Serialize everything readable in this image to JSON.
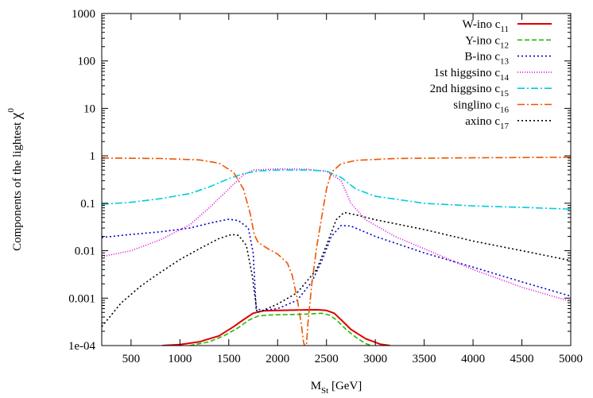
{
  "chart_data": {
    "type": "line",
    "title": "",
    "xlabel": "M",
    "xlabel_sub": "St",
    "xlabel_unit": "[GeV]",
    "ylabel": "Components of the lightest",
    "ylabel_symbol": "χ",
    "ylabel_sup": "0",
    "xlim": [
      200,
      5000
    ],
    "ylim": [
      0.0001,
      1000
    ],
    "yscale": "log",
    "grid": false,
    "legend_position": "top-right",
    "x_ticks": [
      500,
      1000,
      1500,
      2000,
      2500,
      3000,
      3500,
      4000,
      4500,
      5000
    ],
    "x_tick_labels": [
      "500",
      "1000",
      "1500",
      "2000",
      "2500",
      "3000",
      "3500",
      "4000",
      "4500",
      "5000"
    ],
    "y_ticks": [
      0.0001,
      0.001,
      0.01,
      0.1,
      1,
      10,
      100,
      1000
    ],
    "y_tick_labels": [
      "1e-04",
      "0.001",
      "0.01",
      "0.1",
      "1",
      "10",
      "100",
      "1000"
    ],
    "series": [
      {
        "name": "W-ino",
        "coeff": "c",
        "sub": "11",
        "color": "#e00000",
        "dash": "",
        "points": [
          [
            820,
            0.0001
          ],
          [
            1000,
            0.000105
          ],
          [
            1200,
            0.00012
          ],
          [
            1400,
            0.00016
          ],
          [
            1550,
            0.00025
          ],
          [
            1650,
            0.00035
          ],
          [
            1750,
            0.00048
          ],
          [
            1850,
            0.00054
          ],
          [
            2000,
            0.00055
          ],
          [
            2200,
            0.00056
          ],
          [
            2400,
            0.00057
          ],
          [
            2500,
            0.00055
          ],
          [
            2580,
            0.00048
          ],
          [
            2650,
            0.00035
          ],
          [
            2750,
            0.00022
          ],
          [
            2900,
            0.00014
          ],
          [
            3050,
            0.000107
          ],
          [
            3150,
            0.0001
          ]
        ]
      },
      {
        "name": "Y-ino",
        "coeff": "c",
        "sub": "12",
        "color": "#22bb00",
        "dash": "6,3",
        "points": [
          [
            1100,
            0.0001
          ],
          [
            1300,
            0.00012
          ],
          [
            1450,
            0.00016
          ],
          [
            1600,
            0.00024
          ],
          [
            1700,
            0.00034
          ],
          [
            1800,
            0.00042
          ],
          [
            1900,
            0.00044
          ],
          [
            2100,
            0.00045
          ],
          [
            2300,
            0.00046
          ],
          [
            2450,
            0.00048
          ],
          [
            2530,
            0.00044
          ],
          [
            2600,
            0.00035
          ],
          [
            2700,
            0.00022
          ],
          [
            2800,
            0.00015
          ],
          [
            2900,
            0.00011
          ],
          [
            2960,
            0.0001
          ]
        ]
      },
      {
        "name": "B-ino",
        "coeff": "c",
        "sub": "13",
        "color": "#0000cc",
        "dash": "2,3",
        "points": [
          [
            200,
            0.019
          ],
          [
            500,
            0.022
          ],
          [
            800,
            0.025
          ],
          [
            1100,
            0.03
          ],
          [
            1350,
            0.04
          ],
          [
            1500,
            0.046
          ],
          [
            1600,
            0.043
          ],
          [
            1700,
            0.03
          ],
          [
            1750,
            0.009
          ],
          [
            1780,
            0.0006
          ],
          [
            1850,
            0.00055
          ],
          [
            2000,
            0.0006
          ],
          [
            2200,
            0.0009
          ],
          [
            2350,
            0.0022
          ],
          [
            2450,
            0.006
          ],
          [
            2550,
            0.02
          ],
          [
            2650,
            0.034
          ],
          [
            2750,
            0.033
          ],
          [
            3000,
            0.02
          ],
          [
            3500,
            0.009
          ],
          [
            4000,
            0.0045
          ],
          [
            4500,
            0.0022
          ],
          [
            5000,
            0.0011
          ]
        ]
      },
      {
        "name": "1st higgsino",
        "coeff": "c",
        "sub": "14",
        "color": "#dd00dd",
        "dash": "1,2",
        "points": [
          [
            200,
            0.0075
          ],
          [
            500,
            0.01
          ],
          [
            800,
            0.017
          ],
          [
            1100,
            0.035
          ],
          [
            1300,
            0.08
          ],
          [
            1500,
            0.2
          ],
          [
            1650,
            0.4
          ],
          [
            1750,
            0.5
          ],
          [
            2000,
            0.53
          ],
          [
            2300,
            0.52
          ],
          [
            2500,
            0.47
          ],
          [
            2650,
            0.3
          ],
          [
            2750,
            0.1
          ],
          [
            2900,
            0.045
          ],
          [
            3200,
            0.02
          ],
          [
            3500,
            0.011
          ],
          [
            4000,
            0.004
          ],
          [
            4500,
            0.0017
          ],
          [
            5000,
            0.00085
          ]
        ]
      },
      {
        "name": "2nd higgsino",
        "coeff": "c",
        "sub": "15",
        "color": "#00ccdd",
        "dash": "9,3,2,3",
        "points": [
          [
            200,
            0.095
          ],
          [
            500,
            0.105
          ],
          [
            800,
            0.125
          ],
          [
            1100,
            0.16
          ],
          [
            1300,
            0.22
          ],
          [
            1500,
            0.33
          ],
          [
            1650,
            0.42
          ],
          [
            1800,
            0.48
          ],
          [
            2000,
            0.5
          ],
          [
            2300,
            0.5
          ],
          [
            2500,
            0.48
          ],
          [
            2650,
            0.35
          ],
          [
            2800,
            0.2
          ],
          [
            3000,
            0.14
          ],
          [
            3500,
            0.1
          ],
          [
            4000,
            0.088
          ],
          [
            4500,
            0.082
          ],
          [
            5000,
            0.075
          ]
        ]
      },
      {
        "name": "singlino",
        "coeff": "c",
        "sub": "16",
        "color": "#ee5500",
        "dash": "9,3,2,3",
        "points": [
          [
            200,
            0.9
          ],
          [
            800,
            0.88
          ],
          [
            1200,
            0.82
          ],
          [
            1400,
            0.7
          ],
          [
            1550,
            0.45
          ],
          [
            1650,
            0.2
          ],
          [
            1720,
            0.06
          ],
          [
            1760,
            0.022
          ],
          [
            1800,
            0.015
          ],
          [
            1900,
            0.011
          ],
          [
            2000,
            0.0085
          ],
          [
            2100,
            0.0055
          ],
          [
            2150,
            0.003
          ],
          [
            2200,
            0.001
          ],
          [
            2240,
            0.0003
          ],
          [
            2265,
            0.00012
          ],
          [
            2275,
            0.0001
          ],
          [
            2295,
            0.0001
          ],
          [
            2310,
            0.0003
          ],
          [
            2350,
            0.002
          ],
          [
            2400,
            0.012
          ],
          [
            2450,
            0.05
          ],
          [
            2500,
            0.2
          ],
          [
            2550,
            0.45
          ],
          [
            2650,
            0.68
          ],
          [
            2800,
            0.8
          ],
          [
            3200,
            0.88
          ],
          [
            4000,
            0.91
          ],
          [
            5000,
            0.93
          ]
        ]
      },
      {
        "name": "axino",
        "coeff": "c",
        "sub": "17",
        "color": "#000000",
        "dash": "2,3",
        "points": [
          [
            200,
            0.00025
          ],
          [
            400,
            0.0008
          ],
          [
            600,
            0.0018
          ],
          [
            800,
            0.0035
          ],
          [
            1000,
            0.0065
          ],
          [
            1200,
            0.011
          ],
          [
            1400,
            0.018
          ],
          [
            1530,
            0.022
          ],
          [
            1600,
            0.021
          ],
          [
            1680,
            0.013
          ],
          [
            1740,
            0.003
          ],
          [
            1790,
            0.0005
          ],
          [
            1850,
            0.00055
          ],
          [
            2000,
            0.00075
          ],
          [
            2200,
            0.0013
          ],
          [
            2400,
            0.004
          ],
          [
            2500,
            0.013
          ],
          [
            2600,
            0.045
          ],
          [
            2680,
            0.064
          ],
          [
            2800,
            0.057
          ],
          [
            3000,
            0.045
          ],
          [
            3500,
            0.028
          ],
          [
            4000,
            0.016
          ],
          [
            4500,
            0.01
          ],
          [
            5000,
            0.0062
          ]
        ]
      }
    ]
  }
}
